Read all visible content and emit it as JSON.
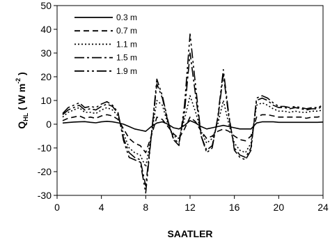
{
  "chart_data": {
    "type": "line",
    "title": "",
    "xlabel": "SAATLER",
    "ylabel": {
      "q": "Q",
      "sub": "HL",
      "open": " ( W m",
      "sup": "-2",
      "close": " )"
    },
    "xlim": [
      0,
      24
    ],
    "ylim": [
      -30,
      50
    ],
    "xticks": [
      "0",
      "4",
      "8",
      "12",
      "16",
      "20",
      "24"
    ],
    "yticks": [
      "-30",
      "-20",
      "-10",
      "0",
      "10",
      "20",
      "30",
      "40",
      "50"
    ],
    "grid": false,
    "legend_position": "top-left",
    "x": [
      0.5,
      1,
      1.5,
      2,
      2.5,
      3,
      3.5,
      4,
      4.5,
      5,
      5.5,
      6,
      6.5,
      7,
      7.5,
      8,
      8.5,
      9,
      9.5,
      10,
      10.5,
      11,
      11.5,
      12,
      12.5,
      13,
      13.5,
      14,
      14.5,
      15,
      15.5,
      16,
      16.5,
      17,
      17.5,
      18,
      18.5,
      19,
      19.5,
      20,
      20.5,
      21,
      21.5,
      22,
      22.5,
      23,
      23.5,
      24
    ],
    "series": [
      {
        "name": "0.3 m",
        "dash": "solid",
        "values": [
          0.5,
          0.7,
          0.9,
          1.0,
          1.1,
          0.8,
          0.6,
          1.0,
          1.2,
          1.0,
          0.6,
          0.0,
          -1.0,
          -2.0,
          -2.5,
          -3.0,
          -1.0,
          0.5,
          1.0,
          0.0,
          -1.5,
          -2.0,
          -0.5,
          1.5,
          0.5,
          -1.0,
          -2.0,
          -1.5,
          -1.0,
          -0.5,
          -1.0,
          -1.5,
          -2.0,
          -2.0,
          -2.0,
          0.5,
          1.0,
          1.0,
          1.0,
          0.8,
          0.8,
          0.8,
          0.8,
          0.8,
          0.8,
          0.8,
          0.8,
          0.9
        ]
      },
      {
        "name": "0.7 m",
        "dash": "8,5",
        "values": [
          1.5,
          2.5,
          3.0,
          3.5,
          2.5,
          3.0,
          2.5,
          3.5,
          4.0,
          3.5,
          2.0,
          -2.0,
          -6.0,
          -8.0,
          -9.0,
          -12.0,
          -5.0,
          3.0,
          2.0,
          -1.0,
          -4.0,
          -6.0,
          -2.0,
          3.0,
          1.0,
          -3.0,
          -6.0,
          -5.0,
          -3.0,
          -2.0,
          -3.0,
          -5.0,
          -6.5,
          -7.0,
          -5.0,
          3.0,
          4.0,
          4.0,
          3.5,
          3.0,
          3.0,
          3.0,
          3.0,
          3.0,
          2.5,
          3.0,
          3.0,
          3.5
        ]
      },
      {
        "name": "1.1 m",
        "dash": "2,3",
        "values": [
          3.0,
          5.0,
          6.0,
          7.0,
          5.0,
          5.0,
          4.5,
          6.0,
          7.0,
          6.0,
          3.5,
          -4.0,
          -10.0,
          -12.0,
          -13.0,
          -18.0,
          -5.0,
          10.0,
          8.0,
          0.0,
          -5.0,
          -6.0,
          2.0,
          12.0,
          5.0,
          -3.0,
          -8.0,
          -6.0,
          0.0,
          10.0,
          0.0,
          -8.0,
          -11.0,
          -12.0,
          -8.0,
          8.0,
          9.0,
          8.0,
          6.5,
          5.5,
          5.5,
          5.0,
          5.5,
          5.0,
          5.0,
          5.5,
          5.5,
          6.0
        ]
      },
      {
        "name": "1.5 m",
        "dash": "14,4,3,4",
        "values": [
          4.0,
          6.0,
          7.0,
          8.0,
          6.0,
          6.5,
          6.0,
          7.5,
          8.5,
          7.5,
          4.5,
          -6.0,
          -12.0,
          -14.0,
          -15.0,
          -26.0,
          -5.0,
          17.0,
          11.0,
          1.0,
          -6.0,
          -8.0,
          5.0,
          30.0,
          12.0,
          -5.0,
          -11.0,
          -9.0,
          2.0,
          21.0,
          3.0,
          -10.0,
          -13.0,
          -14.0,
          -10.0,
          10.0,
          11.0,
          10.0,
          8.0,
          7.0,
          7.0,
          6.5,
          7.0,
          6.5,
          6.0,
          6.5,
          6.5,
          7.5
        ]
      },
      {
        "name": "1.9 m",
        "dash": "14,4,3,4,3,4",
        "values": [
          4.5,
          7.0,
          8.0,
          9.0,
          7.0,
          7.5,
          7.0,
          8.5,
          9.5,
          8.0,
          5.0,
          -7.0,
          -14.0,
          -15.0,
          -16.0,
          -29.0,
          -5.0,
          19.0,
          12.0,
          1.5,
          -6.5,
          -9.0,
          8.0,
          38.0,
          16.0,
          -5.0,
          -12.0,
          -10.0,
          3.0,
          23.0,
          4.0,
          -11.0,
          -14.0,
          -15.0,
          -11.0,
          11.0,
          12.0,
          11.0,
          9.0,
          7.5,
          7.5,
          7.0,
          7.5,
          7.0,
          6.5,
          7.0,
          7.0,
          8.0
        ]
      }
    ]
  }
}
